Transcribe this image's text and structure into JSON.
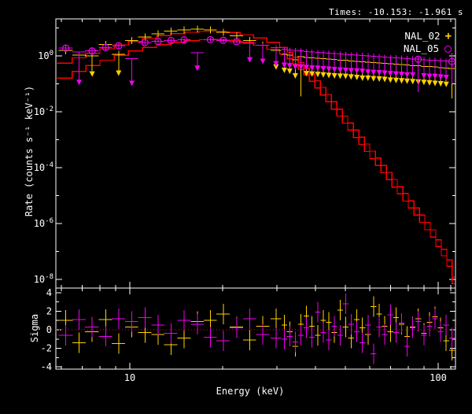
{
  "header": {
    "times_label": "Times: -10.153: -1.961 s"
  },
  "colors": {
    "background": "#000000",
    "axis": "#ffffff",
    "nal02": "#ffd200",
    "nal05": "#f200f2",
    "model": "#ff0000",
    "zero_line": "#ff0000"
  },
  "legend": {
    "items": [
      {
        "label": "NAL_02",
        "marker": "plus-icon",
        "color_key": "nal02"
      },
      {
        "label": "NAL_05",
        "marker": "circle-icon",
        "color_key": "nal05"
      }
    ]
  },
  "chart_data": {
    "type": "scatter",
    "subtype": "spectrum-with-residuals",
    "x_axis": {
      "label": "Energy (keV)",
      "scale": "log",
      "range": [
        5.8,
        114
      ],
      "ticks": [
        10,
        100
      ],
      "tick_labels": [
        "10",
        "100"
      ],
      "minor_ticks": [
        6,
        7,
        8,
        9,
        20,
        30,
        40,
        50,
        60,
        70,
        80,
        90,
        110
      ]
    },
    "top_panel": {
      "ylabel": "Rate (counts s⁻¹ keV⁻¹)",
      "scale": "log",
      "range_exponents": [
        -8.31,
        1.32
      ],
      "ytick_exponents": [
        0,
        -2,
        -4,
        -6,
        -8
      ],
      "minor_tick_exponents": [
        1,
        -1,
        -3,
        -5,
        -7
      ],
      "energies": [
        6.2,
        6.85,
        7.55,
        8.35,
        9.2,
        10.15,
        11.2,
        12.35,
        13.6,
        15.0,
        16.55,
        18.25,
        20.1,
        22.2,
        24.5,
        27.0,
        29.8,
        31.7,
        33.0,
        34.4,
        35.9,
        37.4,
        39.0,
        40.7,
        42.4,
        44.2,
        46.1,
        48.1,
        50.1,
        52.2,
        54.5,
        56.8,
        59.2,
        61.7,
        64.4,
        67.1,
        70.0,
        73.0,
        76.1,
        79.3,
        82.7,
        86.2,
        89.9,
        93.7,
        97.7,
        101.9,
        106.2,
        110.8
      ],
      "half_widths": [
        0.33,
        0.34,
        0.39,
        0.42,
        0.46,
        0.5,
        0.55,
        0.6,
        0.68,
        0.75,
        0.8,
        0.9,
        1.0,
        1.1,
        1.2,
        1.35,
        1.2,
        0.67,
        0.69,
        0.72,
        0.75,
        0.79,
        0.82,
        0.85,
        0.89,
        0.93,
        0.97,
        1.0,
        1.05,
        1.1,
        1.15,
        1.2,
        1.25,
        1.3,
        1.35,
        1.4,
        1.47,
        1.53,
        1.6,
        1.66,
        1.74,
        1.81,
        1.89,
        1.97,
        2.05,
        2.14,
        2.23,
        2.3
      ],
      "series": [
        {
          "name": "NAL_02",
          "color_key": "nal02",
          "marker": "plus",
          "rate": [
            1.6,
            1.05,
            1.0,
            2.6,
            1.15,
            3.6,
            4.8,
            6.2,
            7.6,
            8.6,
            9.0,
            8.4,
            7.0,
            5.2,
            3.6,
            2.4,
            1.55,
            1.15,
            1.05,
            0.72,
            0.95,
            0.88,
            0.85,
            0.82,
            0.79,
            0.76,
            0.74,
            0.71,
            0.69,
            0.66,
            0.64,
            0.62,
            0.6,
            0.58,
            0.56,
            0.54,
            0.52,
            0.5,
            0.49,
            0.47,
            0.45,
            0.44,
            0.42,
            0.41,
            0.4,
            0.38,
            0.37,
            0.36
          ],
          "err_hi": [
            2.1,
            1.35,
            1.3,
            3.2,
            1.5,
            4.3,
            5.6,
            7.1,
            8.6,
            9.7,
            10.1,
            9.4,
            7.9,
            5.9,
            4.2,
            2.85,
            1.9,
            1.45,
            1.35,
            0.95,
            1.25,
            1.15,
            1.1,
            1.05,
            1.0,
            0.98,
            0.95,
            0.9,
            0.88,
            0.85,
            0.82,
            0.79,
            0.77,
            0.74,
            0.72,
            0.7,
            0.67,
            0.64,
            0.63,
            0.6,
            0.58,
            0.57,
            0.54,
            0.53,
            0.51,
            0.49,
            0.48,
            0.46
          ],
          "err_lo": [
            1.15,
            0.75,
            0.28,
            2.05,
            0.3,
            3.0,
            4.1,
            5.4,
            6.7,
            7.6,
            8.0,
            7.4,
            6.2,
            4.5,
            3.1,
            2.0,
            0.5,
            0.38,
            0.35,
            0.24,
            0.035,
            0.29,
            0.28,
            0.27,
            0.26,
            0.25,
            0.24,
            0.235,
            0.23,
            0.22,
            0.21,
            0.2,
            0.2,
            0.19,
            0.185,
            0.18,
            0.17,
            0.165,
            0.16,
            0.155,
            0.15,
            0.145,
            0.14,
            0.135,
            0.13,
            0.125,
            0.12,
            0.03
          ],
          "upper_limit_arrow": [
            0,
            0,
            1,
            0,
            1,
            0,
            0,
            0,
            0,
            0,
            0,
            0,
            0,
            0,
            0,
            0,
            1,
            1,
            1,
            1,
            0,
            1,
            1,
            1,
            1,
            1,
            1,
            1,
            1,
            1,
            1,
            1,
            1,
            1,
            1,
            1,
            1,
            1,
            1,
            1,
            1,
            1,
            1,
            1,
            1,
            1,
            1,
            0
          ]
        },
        {
          "name": "NAL_05",
          "color_key": "nal05",
          "marker": "circle",
          "rate": [
            1.9,
            1.4,
            1.5,
            2.0,
            2.3,
            0.8,
            3.0,
            3.3,
            3.55,
            3.75,
            1.3,
            3.8,
            3.6,
            3.25,
            2.8,
            2.4,
            2.0,
            1.75,
            1.65,
            1.55,
            1.5,
            1.45,
            1.4,
            1.35,
            1.3,
            1.25,
            1.22,
            1.18,
            1.15,
            1.1,
            1.07,
            1.04,
            1.0,
            0.97,
            0.94,
            0.91,
            0.88,
            0.85,
            0.83,
            0.8,
            0.78,
            0.76,
            0.73,
            0.71,
            0.69,
            0.67,
            0.65,
            0.63
          ],
          "err_hi": [
            2.5,
            1.4,
            1.95,
            2.5,
            2.9,
            0.8,
            3.6,
            3.9,
            4.2,
            4.4,
            1.3,
            4.45,
            4.2,
            3.8,
            3.3,
            2.85,
            2.4,
            2.1,
            2.0,
            1.9,
            1.85,
            1.75,
            1.7,
            1.65,
            1.6,
            1.55,
            1.5,
            1.45,
            1.4,
            1.35,
            1.32,
            1.28,
            1.24,
            1.2,
            1.16,
            1.12,
            1.08,
            1.05,
            1.02,
            0.99,
            0.96,
            0.94,
            0.9,
            0.88,
            0.85,
            0.83,
            0.8,
            1.3
          ],
          "err_lo": [
            1.4,
            0.14,
            1.1,
            1.55,
            1.8,
            0.13,
            2.45,
            2.75,
            3.0,
            3.15,
            0.45,
            3.2,
            3.05,
            2.7,
            0.9,
            0.8,
            0.65,
            0.58,
            0.55,
            0.5,
            0.5,
            0.48,
            0.46,
            0.45,
            0.43,
            0.42,
            0.4,
            0.39,
            0.38,
            0.37,
            0.36,
            0.35,
            0.33,
            0.32,
            0.31,
            0.3,
            0.29,
            0.28,
            0.27,
            0.26,
            0.26,
            0.05,
            0.24,
            0.23,
            0.23,
            0.22,
            0.21,
            0.1
          ],
          "upper_limit_arrow": [
            0,
            1,
            0,
            0,
            0,
            1,
            0,
            0,
            0,
            0,
            1,
            0,
            0,
            0,
            1,
            1,
            1,
            1,
            1,
            1,
            1,
            1,
            1,
            1,
            1,
            1,
            1,
            1,
            1,
            1,
            1,
            1,
            1,
            1,
            1,
            1,
            1,
            1,
            1,
            1,
            1,
            0,
            1,
            1,
            1,
            1,
            1,
            0
          ]
        }
      ],
      "models": [
        {
          "name": "model NAL_02",
          "color_key": "model",
          "style": "stepped",
          "e": [
            5.8,
            6.5,
            7.2,
            8.0,
            8.9,
            9.9,
            11.0,
            12.2,
            13.6,
            15.1,
            16.8,
            18.6,
            20.6,
            22.8,
            25.2,
            27.8,
            30.6,
            32.4,
            33.8,
            35.2,
            36.7,
            38.2,
            39.8,
            41.5,
            43.2,
            45.0,
            46.9,
            48.9,
            50.9,
            53.1,
            55.3,
            57.6,
            60.0,
            62.6,
            65.2,
            67.9,
            70.8,
            73.7,
            76.8,
            80.0,
            83.4,
            86.9,
            90.5,
            94.3,
            98.2,
            102.3,
            106.6,
            111.0
          ],
          "rate": [
            0.55,
            0.85,
            1.25,
            1.8,
            2.5,
            3.3,
            4.3,
            5.3,
            6.3,
            7.0,
            7.5,
            7.5,
            6.9,
            5.8,
            4.4,
            3.1,
            2.0,
            1.35,
            0.9,
            0.58,
            0.36,
            0.22,
            0.13,
            0.075,
            0.042,
            0.023,
            0.0125,
            0.007,
            0.004,
            0.0022,
            0.00125,
            0.0007,
            0.00039,
            0.00022,
            0.00012,
            6.8e-05,
            3.8e-05,
            2.1e-05,
            1.2e-05,
            6.5e-06,
            3.6e-06,
            2e-06,
            1.1e-06,
            6e-07,
            2.6e-07,
            1.2e-07,
            5e-08,
            1.2e-08
          ]
        },
        {
          "name": "model NAL_05",
          "color_key": "model",
          "style": "stepped",
          "e": [
            5.8,
            6.5,
            7.2,
            8.0,
            8.9,
            9.9,
            11.0,
            12.2,
            13.6,
            15.1,
            16.8,
            18.6,
            20.6,
            22.8,
            25.2,
            27.8,
            30.6,
            32.4,
            33.8,
            35.2,
            36.7,
            38.2,
            39.8,
            41.5,
            43.2,
            45.0,
            46.9,
            48.9,
            50.9,
            53.1,
            55.3,
            57.6,
            60.0,
            62.6,
            65.2,
            67.9,
            70.8,
            73.7,
            76.8,
            80.0,
            83.4,
            86.9,
            90.5,
            94.3,
            98.2,
            102.3,
            106.6,
            111.0
          ],
          "rate": [
            0.16,
            0.28,
            0.45,
            0.7,
            1.05,
            1.5,
            2.0,
            2.55,
            3.05,
            3.5,
            3.8,
            3.85,
            3.6,
            3.1,
            2.4,
            1.75,
            1.15,
            0.78,
            0.52,
            0.33,
            0.21,
            0.125,
            0.072,
            0.04,
            0.023,
            0.0125,
            0.007,
            0.0039,
            0.0022,
            0.0012,
            0.00068,
            0.00038,
            0.00021,
            0.00012,
            6.6e-05,
            3.7e-05,
            2e-05,
            1.15e-05,
            6.4e-06,
            3.6e-06,
            2e-06,
            1.1e-06,
            6e-07,
            3.3e-07,
            1.5e-07,
            7e-08,
            3e-08,
            7e-09
          ]
        }
      ]
    },
    "bottom_panel": {
      "ylabel": "Sigma",
      "scale": "linear",
      "range": [
        -4.4,
        4.5
      ],
      "yticks": [
        4,
        2,
        0,
        -2,
        -4
      ],
      "minor_yticks": [
        3,
        1,
        -1,
        -3
      ],
      "zero_line": {
        "value": 0,
        "style": "dotted",
        "color_key": "zero_line"
      },
      "series": [
        {
          "name": "NAL_02",
          "color_key": "nal02",
          "sigma": [
            1.0,
            -1.4,
            -0.2,
            1.1,
            -1.5,
            0.3,
            -0.3,
            -0.5,
            -1.6,
            -0.9,
            0.9,
            1.0,
            1.7,
            0.3,
            -1.1,
            0.4,
            1.2,
            0.5,
            -0.2,
            -1.8,
            0.6,
            1.5,
            0.4,
            -0.6,
            1.0,
            0.8,
            -0.3,
            2.1,
            0.3,
            -0.9,
            1.1,
            0.2,
            -0.5,
            2.5,
            1.7,
            0.4,
            -0.2,
            1.3,
            0.6,
            -0.7,
            0.3,
            1.2,
            -0.4,
            0.8,
            1.4,
            0.2,
            -1.2,
            -2.2
          ]
        },
        {
          "name": "NAL_05",
          "color_key": "nal05",
          "sigma": [
            -0.6,
            1.1,
            0.3,
            -0.7,
            1.2,
            0.9,
            1.3,
            0.5,
            -0.4,
            1.0,
            0.6,
            -0.8,
            -1.2,
            0.2,
            1.2,
            -0.5,
            -0.9,
            -1.0,
            -0.7,
            -1.3,
            -0.6,
            0.2,
            -0.8,
            1.9,
            -0.3,
            -1.1,
            0.4,
            -0.6,
            2.8,
            0.6,
            -0.2,
            -1.4,
            0.5,
            -2.6,
            0.3,
            -0.5,
            1.6,
            -0.3,
            0.7,
            -1.8,
            0.2,
            0.9,
            -0.6,
            0.4,
            1.2,
            -0.2,
            0.5,
            -0.9
          ]
        }
      ]
    }
  }
}
